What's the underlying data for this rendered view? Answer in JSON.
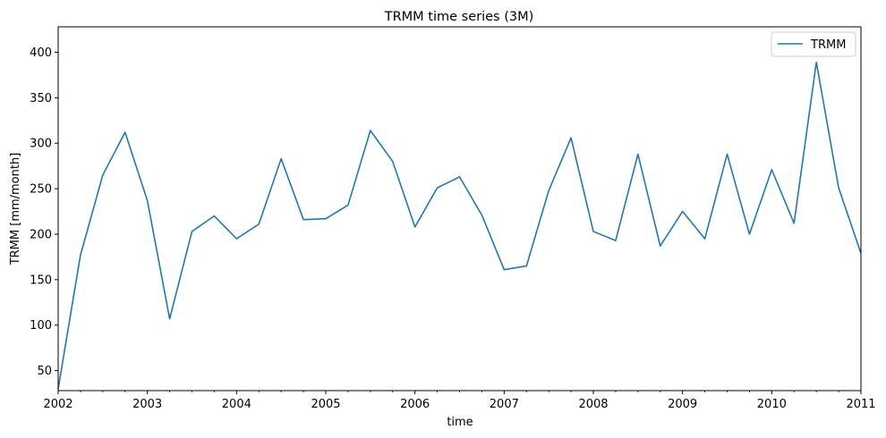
{
  "chart_data": {
    "type": "line",
    "title": "TRMM time series (3M)",
    "xlabel": "time",
    "ylabel": "TRMM [mm/month]",
    "x_tick_labels": [
      "2002",
      "2003",
      "2004",
      "2005",
      "2006",
      "2007",
      "2008",
      "2009",
      "2010",
      "2011"
    ],
    "y_tick_labels": [
      "50",
      "100",
      "150",
      "200",
      "250",
      "300",
      "350",
      "400"
    ],
    "xlim": [
      "2002-01",
      "2011-01"
    ],
    "ylim": [
      28,
      428
    ],
    "grid": false,
    "legend_position": "top-right",
    "x": [
      "2002-01",
      "2002-04",
      "2002-07",
      "2002-10",
      "2003-01",
      "2003-04",
      "2003-07",
      "2003-10",
      "2004-01",
      "2004-04",
      "2004-07",
      "2004-10",
      "2005-01",
      "2005-04",
      "2005-07",
      "2005-10",
      "2006-01",
      "2006-04",
      "2006-07",
      "2006-10",
      "2007-01",
      "2007-04",
      "2007-07",
      "2007-10",
      "2008-01",
      "2008-04",
      "2008-07",
      "2008-10",
      "2009-01",
      "2009-04",
      "2009-07",
      "2009-10",
      "2010-01",
      "2010-04",
      "2010-07",
      "2010-10",
      "2011-01"
    ],
    "series": [
      {
        "name": "TRMM",
        "color": "#1f77b4",
        "values": [
          30,
          177,
          265,
          312,
          237,
          107,
          203,
          220,
          195,
          211,
          283,
          216,
          217,
          232,
          314,
          280,
          208,
          251,
          263,
          221,
          161,
          165,
          248,
          306,
          203,
          193,
          288,
          187,
          225,
          195,
          288,
          200,
          271,
          212,
          389,
          251,
          179
        ]
      }
    ]
  }
}
